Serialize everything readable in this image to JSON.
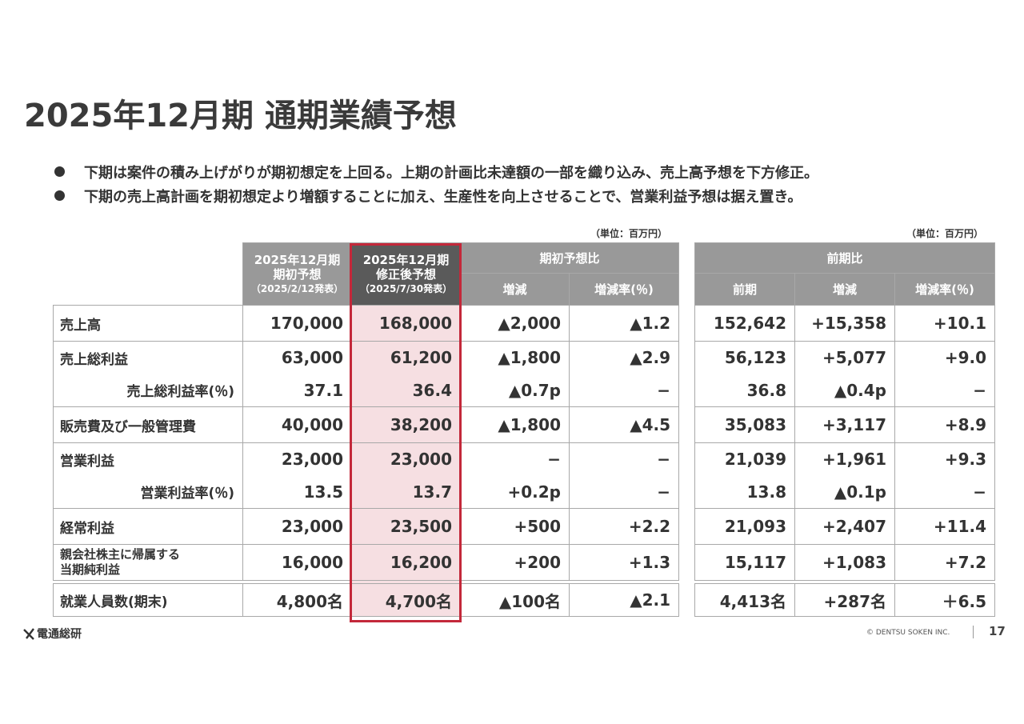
{
  "title": "2025年12月期 通期業績予想",
  "bullets": [
    "下期は案件の積み上げがりが期初想定を上回る。上期の計画比未達額の一部を織り込み、売上高予想を下方修正。",
    "下期の売上高計画を期初想定より増額することに加え、生産性を向上させることで、営業利益予想は据え置き。"
  ],
  "unit_left": "（単位：百万円）",
  "unit_right": "（単位：百万円）",
  "headers": {
    "col1": [
      "2025年12月期",
      "期初予想",
      "（2025/2/12発表）"
    ],
    "col2": [
      "2025年12月期",
      "修正後予想",
      "（2025/7/30発表）"
    ],
    "group1": "期初予想比",
    "group1_sub": [
      "増減",
      "増減率(％)"
    ],
    "group2": "前期比",
    "group2_sub": [
      "前期",
      "増減",
      "増減率(％)"
    ]
  },
  "rows": [
    {
      "label": "売上高",
      "initial": "170,000",
      "revised": "168,000",
      "diff": "▲2,000",
      "diff_rate": "▲1.2",
      "prior": "152,642",
      "yoy": "+15,358",
      "yoy_rate": "+10.1"
    },
    {
      "label": "売上総利益",
      "initial": "63,000",
      "revised": "61,200",
      "diff": "▲1,800",
      "diff_rate": "▲2.9",
      "prior": "56,123",
      "yoy": "+5,077",
      "yoy_rate": "+9.0"
    },
    {
      "label": "売上総利益率(％)",
      "initial": "37.1",
      "revised": "36.4",
      "diff": "▲0.7p",
      "diff_rate": "−",
      "prior": "36.8",
      "yoy": "▲0.4p",
      "yoy_rate": "−"
    },
    {
      "label": "販売費及び一般管理費",
      "initial": "40,000",
      "revised": "38,200",
      "diff": "▲1,800",
      "diff_rate": "▲4.5",
      "prior": "35,083",
      "yoy": "+3,117",
      "yoy_rate": "+8.9"
    },
    {
      "label": "営業利益",
      "initial": "23,000",
      "revised": "23,000",
      "diff": "−",
      "diff_rate": "−",
      "prior": "21,039",
      "yoy": "+1,961",
      "yoy_rate": "+9.3"
    },
    {
      "label": "営業利益率(％)",
      "initial": "13.5",
      "revised": "13.7",
      "diff": "+0.2p",
      "diff_rate": "−",
      "prior": "13.8",
      "yoy": "▲0.1p",
      "yoy_rate": "−"
    },
    {
      "label": "経常利益",
      "initial": "23,000",
      "revised": "23,500",
      "diff": "+500",
      "diff_rate": "+2.2",
      "prior": "21,093",
      "yoy": "+2,407",
      "yoy_rate": "+11.4"
    },
    {
      "label": [
        "親会社株主に帰属する",
        "当期純利益"
      ],
      "initial": "16,000",
      "revised": "16,200",
      "diff": "+200",
      "diff_rate": "+1.3",
      "prior": "15,117",
      "yoy": "+1,083",
      "yoy_rate": "+7.2"
    },
    {
      "label": "就業人員数(期末)",
      "initial": "4,800名",
      "revised": "4,700名",
      "diff": "▲100名",
      "diff_rate": "▲2.1",
      "prior": "4,413名",
      "yoy": "+287名",
      "yoy_rate": "＋6.5"
    }
  ],
  "footer": {
    "logo_text": "電通総研",
    "copyright": "© DENTSU SOKEN INC.",
    "page_number": "17"
  },
  "colors": {
    "header_gray": "#999999",
    "header_dark": "#5a5a5a",
    "highlight_fill": "#f6dfe2",
    "highlight_border": "#c3283a",
    "text": "#333333"
  }
}
